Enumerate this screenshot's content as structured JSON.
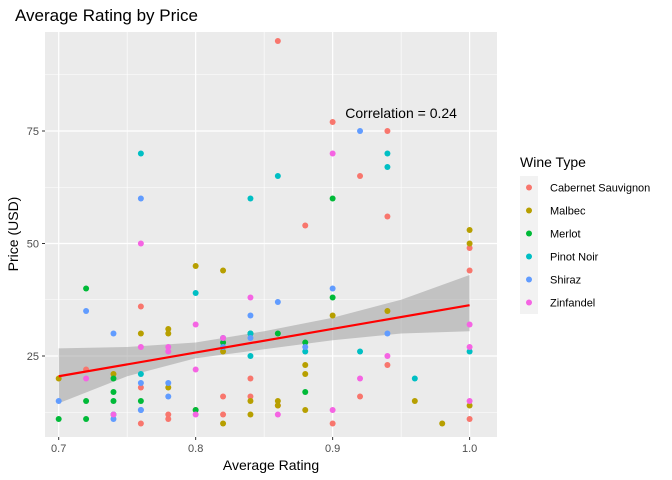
{
  "chart_data": {
    "type": "scatter",
    "title": "Average Rating by Price",
    "xlabel": "Average Rating",
    "ylabel": "Price (USD)",
    "xlim": [
      0.69,
      1.02
    ],
    "ylim": [
      7,
      97
    ],
    "xticks": [
      0.7,
      0.8,
      0.9,
      1.0
    ],
    "xtick_labels": [
      "0.7",
      "0.8",
      "0.9",
      "1.0"
    ],
    "yticks": [
      25,
      50,
      75
    ],
    "ytick_labels": [
      "25",
      "50",
      "75"
    ],
    "grid": true,
    "legend_title": "Wine Type",
    "legend_position": "right",
    "annotation": {
      "text": "Correlation = 0.24",
      "x": 0.95,
      "y": 79
    },
    "trend": {
      "x": [
        0.7,
        1.0
      ],
      "y": [
        20.5,
        36.3
      ],
      "color": "#ff0000"
    },
    "band": {
      "x": [
        0.7,
        0.75,
        0.8,
        0.85,
        0.9,
        0.95,
        1.0
      ],
      "lower": [
        14.5,
        20.5,
        24.5,
        26.5,
        28.5,
        30.0,
        30.5
      ],
      "upper": [
        26.7,
        27.0,
        28.0,
        30.5,
        33.5,
        37.5,
        43.0
      ]
    },
    "series": [
      {
        "name": "Cabernet Sauvignon",
        "color": "#F8766D",
        "points": [
          [
            0.76,
            36
          ],
          [
            0.76,
            10
          ],
          [
            0.76,
            18
          ],
          [
            0.78,
            12
          ],
          [
            0.78,
            11
          ],
          [
            0.8,
            13
          ],
          [
            0.82,
            16
          ],
          [
            0.82,
            12
          ],
          [
            0.84,
            20
          ],
          [
            0.84,
            16
          ],
          [
            0.86,
            95
          ],
          [
            0.88,
            54
          ],
          [
            0.9,
            77
          ],
          [
            0.9,
            10
          ],
          [
            0.92,
            65
          ],
          [
            0.92,
            16
          ],
          [
            0.94,
            75
          ],
          [
            0.94,
            56
          ],
          [
            0.94,
            23
          ],
          [
            1.0,
            49
          ],
          [
            1.0,
            44
          ],
          [
            1.0,
            11
          ],
          [
            0.72,
            22
          ],
          [
            0.86,
            14
          ]
        ]
      },
      {
        "name": "Malbec",
        "color": "#B79F00",
        "points": [
          [
            0.7,
            20
          ],
          [
            0.74,
            21
          ],
          [
            0.76,
            30
          ],
          [
            0.78,
            31
          ],
          [
            0.78,
            30
          ],
          [
            0.78,
            18
          ],
          [
            0.8,
            45
          ],
          [
            0.82,
            44
          ],
          [
            0.82,
            26
          ],
          [
            0.82,
            10
          ],
          [
            0.84,
            12
          ],
          [
            0.84,
            15
          ],
          [
            0.86,
            14
          ],
          [
            0.86,
            15
          ],
          [
            0.88,
            23
          ],
          [
            0.88,
            21
          ],
          [
            0.88,
            13
          ],
          [
            0.9,
            34
          ],
          [
            0.94,
            35
          ],
          [
            0.96,
            15
          ],
          [
            0.98,
            10
          ],
          [
            1.0,
            53
          ],
          [
            1.0,
            50
          ],
          [
            1.0,
            14
          ]
        ]
      },
      {
        "name": "Merlot",
        "color": "#00BA38",
        "points": [
          [
            0.7,
            11
          ],
          [
            0.72,
            40
          ],
          [
            0.72,
            15
          ],
          [
            0.72,
            11
          ],
          [
            0.74,
            17
          ],
          [
            0.74,
            15
          ],
          [
            0.74,
            20
          ],
          [
            0.76,
            15
          ],
          [
            0.8,
            13
          ],
          [
            0.82,
            28
          ],
          [
            0.84,
            30
          ],
          [
            0.86,
            30
          ],
          [
            0.88,
            28
          ],
          [
            0.88,
            17
          ],
          [
            0.9,
            60
          ],
          [
            0.9,
            38
          ]
        ]
      },
      {
        "name": "Pinot Noir",
        "color": "#00BFC4",
        "points": [
          [
            0.74,
            12
          ],
          [
            0.76,
            70
          ],
          [
            0.76,
            21
          ],
          [
            0.8,
            39
          ],
          [
            0.82,
            29
          ],
          [
            0.84,
            60
          ],
          [
            0.84,
            30
          ],
          [
            0.84,
            25
          ],
          [
            0.86,
            65
          ],
          [
            0.88,
            26
          ],
          [
            0.92,
            26
          ],
          [
            0.94,
            70
          ],
          [
            0.94,
            67
          ],
          [
            0.96,
            20
          ],
          [
            1.0,
            26
          ]
        ]
      },
      {
        "name": "Shiraz",
        "color": "#619CFF",
        "points": [
          [
            0.7,
            15
          ],
          [
            0.72,
            35
          ],
          [
            0.74,
            30
          ],
          [
            0.74,
            11
          ],
          [
            0.76,
            60
          ],
          [
            0.76,
            19
          ],
          [
            0.76,
            13
          ],
          [
            0.76,
            13
          ],
          [
            0.78,
            19
          ],
          [
            0.78,
            16
          ],
          [
            0.82,
            27
          ],
          [
            0.84,
            34
          ],
          [
            0.84,
            29
          ],
          [
            0.86,
            37
          ],
          [
            0.88,
            27
          ],
          [
            0.9,
            40
          ],
          [
            0.92,
            75
          ],
          [
            0.94,
            30
          ]
        ]
      },
      {
        "name": "Zinfandel",
        "color": "#F564E3",
        "points": [
          [
            0.72,
            20
          ],
          [
            0.74,
            12
          ],
          [
            0.76,
            50
          ],
          [
            0.76,
            27
          ],
          [
            0.78,
            27
          ],
          [
            0.78,
            26
          ],
          [
            0.8,
            32
          ],
          [
            0.8,
            22
          ],
          [
            0.8,
            12
          ],
          [
            0.82,
            29
          ],
          [
            0.84,
            38
          ],
          [
            0.86,
            12
          ],
          [
            0.9,
            70
          ],
          [
            0.9,
            13
          ],
          [
            0.92,
            20
          ],
          [
            0.94,
            25
          ],
          [
            1.0,
            32
          ],
          [
            1.0,
            27
          ],
          [
            1.0,
            15
          ]
        ]
      }
    ]
  }
}
